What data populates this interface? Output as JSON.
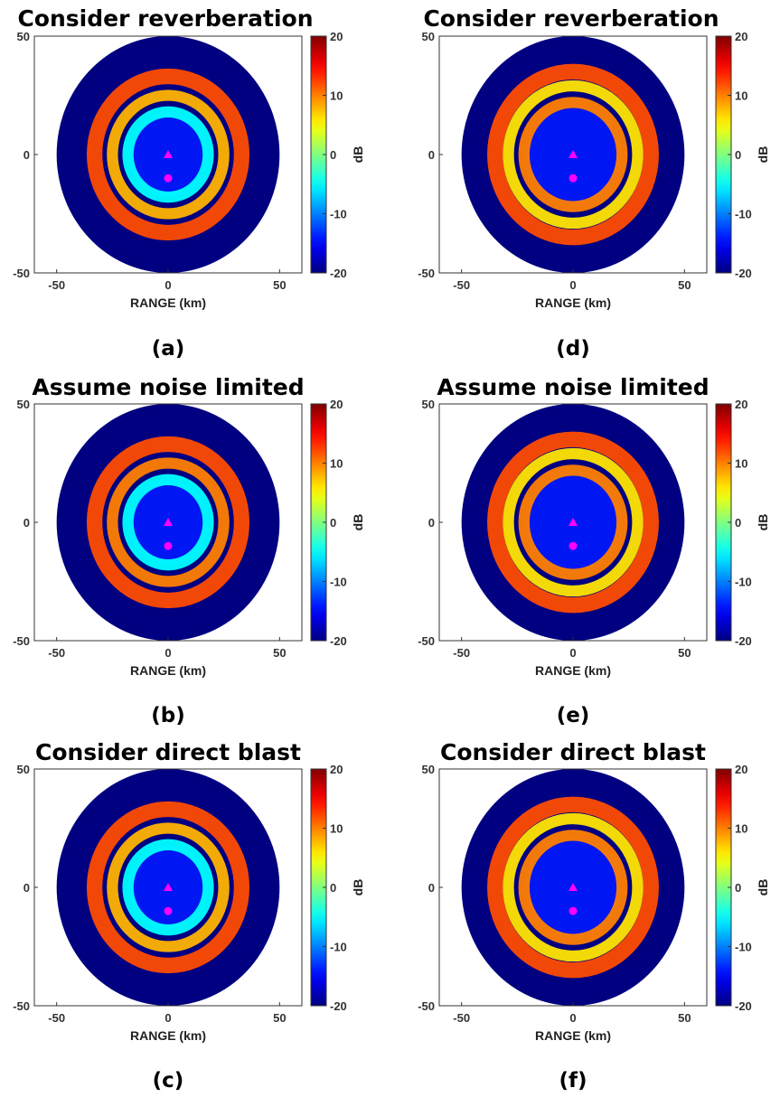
{
  "colorbar": {
    "label": "dB",
    "min": -20,
    "max": 20,
    "ticks": [
      -20,
      -10,
      0,
      10,
      20
    ],
    "colormap": "jet",
    "colors": [
      "#00008f",
      "#0000ff",
      "#00ffff",
      "#ffff00",
      "#ff0000",
      "#800000"
    ]
  },
  "marker_color": "#ff00ff",
  "chart_data": [
    {
      "id": "a",
      "caption": "(a)",
      "title": "Consider reverberation",
      "type": "heatmap",
      "xlabel": "RANGE (km)",
      "ylabel": "",
      "xlim": [
        -60,
        60
      ],
      "ylim": [
        -50,
        50
      ],
      "xticks": [
        -50,
        0,
        50
      ],
      "yticks": [
        -50,
        0,
        50
      ],
      "disk_radius_km": 50,
      "background_db": -20,
      "rings": [
        {
          "radius_km": 33,
          "db": 12
        },
        {
          "radius_km": 25,
          "db": 8
        },
        {
          "radius_km": 18,
          "db": -5
        }
      ],
      "markers": [
        {
          "shape": "triangle",
          "x": 0,
          "y": 0
        },
        {
          "shape": "circle",
          "x": 0,
          "y": -10
        }
      ]
    },
    {
      "id": "b",
      "caption": "(b)",
      "title": "Assume noise limited",
      "type": "heatmap",
      "xlabel": "RANGE (km)",
      "ylabel": "",
      "xlim": [
        -60,
        60
      ],
      "ylim": [
        -50,
        50
      ],
      "xticks": [
        -50,
        0,
        50
      ],
      "yticks": [
        -50,
        0,
        50
      ],
      "disk_radius_km": 50,
      "background_db": -20,
      "rings": [
        {
          "radius_km": 33,
          "db": 12
        },
        {
          "radius_km": 25,
          "db": 10
        },
        {
          "radius_km": 18,
          "db": -5
        }
      ],
      "markers": [
        {
          "shape": "triangle",
          "x": 0,
          "y": 0
        },
        {
          "shape": "circle",
          "x": 0,
          "y": -10
        }
      ]
    },
    {
      "id": "c",
      "caption": "(c)",
      "title": "Consider direct blast",
      "type": "heatmap",
      "xlabel": "RANGE (km)",
      "ylabel": "",
      "xlim": [
        -60,
        60
      ],
      "ylim": [
        -50,
        50
      ],
      "xticks": [
        -50,
        0,
        50
      ],
      "yticks": [
        -50,
        0,
        50
      ],
      "disk_radius_km": 50,
      "background_db": -20,
      "rings": [
        {
          "radius_km": 33,
          "db": 12
        },
        {
          "radius_km": 25,
          "db": 8
        },
        {
          "radius_km": 18,
          "db": -5
        }
      ],
      "markers": [
        {
          "shape": "triangle",
          "x": 0,
          "y": 0
        },
        {
          "shape": "circle",
          "x": 0,
          "y": -10
        }
      ]
    },
    {
      "id": "d",
      "caption": "(d)",
      "title": "Consider reverberation",
      "type": "heatmap",
      "xlabel": "RANGE (km)",
      "ylabel": "",
      "xlim": [
        -60,
        60
      ],
      "ylim": [
        -50,
        50
      ],
      "xticks": [
        -50,
        0,
        50
      ],
      "yticks": [
        -50,
        0,
        50
      ],
      "disk_radius_km": 50,
      "background_db": -20,
      "rings": [
        {
          "radius_km": 35,
          "db": 12
        },
        {
          "radius_km": 29,
          "db": 6
        },
        {
          "radius_km": 22,
          "db": 10
        }
      ],
      "markers": [
        {
          "shape": "triangle",
          "x": 0,
          "y": 0
        },
        {
          "shape": "circle",
          "x": 0,
          "y": -10
        }
      ]
    },
    {
      "id": "e",
      "caption": "(e)",
      "title": "Assume noise limited",
      "type": "heatmap",
      "xlabel": "RANGE (km)",
      "ylabel": "",
      "xlim": [
        -60,
        60
      ],
      "ylim": [
        -50,
        50
      ],
      "xticks": [
        -50,
        0,
        50
      ],
      "yticks": [
        -50,
        0,
        50
      ],
      "disk_radius_km": 50,
      "background_db": -20,
      "rings": [
        {
          "radius_km": 35,
          "db": 12
        },
        {
          "radius_km": 29,
          "db": 6
        },
        {
          "radius_km": 22,
          "db": 10
        }
      ],
      "markers": [
        {
          "shape": "triangle",
          "x": 0,
          "y": 0
        },
        {
          "shape": "circle",
          "x": 0,
          "y": -10
        }
      ]
    },
    {
      "id": "f",
      "caption": "(f)",
      "title": "Consider direct blast",
      "type": "heatmap",
      "xlabel": "RANGE (km)",
      "ylabel": "",
      "xlim": [
        -60,
        60
      ],
      "ylim": [
        -50,
        50
      ],
      "xticks": [
        -50,
        0,
        50
      ],
      "yticks": [
        -50,
        0,
        50
      ],
      "disk_radius_km": 50,
      "background_db": -20,
      "rings": [
        {
          "radius_km": 35,
          "db": 12
        },
        {
          "radius_km": 29,
          "db": 6
        },
        {
          "radius_km": 22,
          "db": 10
        }
      ],
      "markers": [
        {
          "shape": "triangle",
          "x": 0,
          "y": 0
        },
        {
          "shape": "circle",
          "x": 0,
          "y": -10
        }
      ]
    }
  ]
}
